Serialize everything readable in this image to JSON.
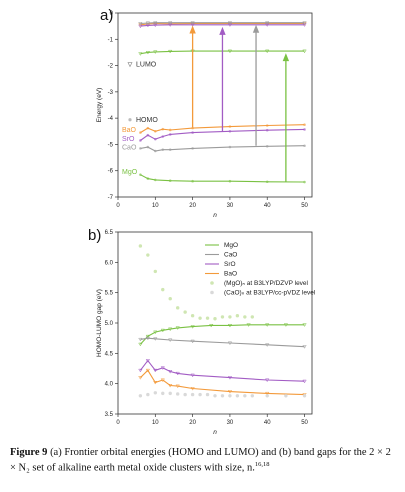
{
  "figure": {
    "panel_a": "a)",
    "panel_b": "b)",
    "caption_label": "Figure 9",
    "caption_text": " (a) Frontier orbital energies (HOMO and LUMO) and (b) band gaps for the 2 × 2 × N₂ set of alkaline earth metal oxide clusters with size, n.",
    "caption_refs": "16,18"
  },
  "colors": {
    "MgO": "#7ac143",
    "CaO": "#9b9b9b",
    "SrO": "#a25cc4",
    "BaO": "#f39a3b"
  },
  "chart_data": [
    {
      "type": "line",
      "xlabel": "n",
      "ylabel": "Energy (eV)",
      "xlim": [
        0,
        52
      ],
      "ylim": [
        -7,
        0
      ],
      "xticks": [
        0,
        10,
        20,
        30,
        40,
        50
      ],
      "yticks": [
        0,
        -1,
        -2,
        -3,
        -4,
        -5,
        -6,
        -7
      ],
      "annotations": {
        "lumo": "LUMO",
        "homo": "HOMO"
      },
      "series": [
        {
          "name": "BaO",
          "orbital": "LUMO",
          "x": [
            6,
            8,
            10,
            14,
            20,
            30,
            40,
            50
          ],
          "y": [
            -0.45,
            -0.42,
            -0.4,
            -0.41,
            -0.4,
            -0.4,
            -0.4,
            -0.4
          ]
        },
        {
          "name": "SrO",
          "orbital": "LUMO",
          "x": [
            6,
            8,
            10,
            14,
            20,
            30,
            40,
            50
          ],
          "y": [
            -0.5,
            -0.47,
            -0.46,
            -0.45,
            -0.45,
            -0.45,
            -0.45,
            -0.45
          ]
        },
        {
          "name": "CaO",
          "orbital": "LUMO",
          "x": [
            6,
            8,
            10,
            14,
            20,
            30,
            40,
            50
          ],
          "y": [
            -0.4,
            -0.38,
            -0.37,
            -0.37,
            -0.37,
            -0.37,
            -0.37,
            -0.37
          ]
        },
        {
          "name": "MgO",
          "orbital": "LUMO",
          "x": [
            6,
            8,
            10,
            14,
            20,
            30,
            40,
            50
          ],
          "y": [
            -1.55,
            -1.5,
            -1.48,
            -1.46,
            -1.45,
            -1.45,
            -1.45,
            -1.45
          ]
        },
        {
          "name": "BaO",
          "orbital": "HOMO",
          "x": [
            6,
            8,
            10,
            12,
            14,
            20,
            30,
            40,
            50
          ],
          "y": [
            -4.55,
            -4.38,
            -4.5,
            -4.42,
            -4.45,
            -4.38,
            -4.32,
            -4.28,
            -4.25
          ]
        },
        {
          "name": "SrO",
          "orbital": "HOMO",
          "x": [
            6,
            8,
            10,
            12,
            14,
            20,
            30,
            40,
            50
          ],
          "y": [
            -4.85,
            -4.65,
            -4.8,
            -4.7,
            -4.62,
            -4.55,
            -4.5,
            -4.46,
            -4.43
          ]
        },
        {
          "name": "CaO",
          "orbital": "HOMO",
          "x": [
            6,
            8,
            10,
            12,
            14,
            20,
            30,
            40,
            50
          ],
          "y": [
            -5.15,
            -5.1,
            -5.25,
            -5.2,
            -5.2,
            -5.15,
            -5.1,
            -5.07,
            -5.05
          ]
        },
        {
          "name": "MgO",
          "orbital": "HOMO",
          "x": [
            6,
            8,
            10,
            14,
            20,
            30,
            40,
            50
          ],
          "y": [
            -6.15,
            -6.3,
            -6.35,
            -6.38,
            -6.4,
            -6.4,
            -6.42,
            -6.43
          ]
        }
      ],
      "gap_arrows": [
        {
          "name": "BaO",
          "x": 20,
          "y_from": -4.35,
          "y_to": -0.4
        },
        {
          "name": "SrO",
          "x": 28,
          "y_from": -4.5,
          "y_to": -0.45
        },
        {
          "name": "CaO",
          "x": 37,
          "y_from": -5.05,
          "y_to": -0.37
        },
        {
          "name": "MgO",
          "x": 45,
          "y_from": -6.42,
          "y_to": -1.45
        }
      ]
    },
    {
      "type": "line",
      "xlabel": "n",
      "ylabel": "HOMO-LUMO gap (eV)",
      "xlim": [
        0,
        52
      ],
      "ylim": [
        3.5,
        6.5
      ],
      "xticks": [
        0,
        10,
        20,
        30,
        40,
        50
      ],
      "yticks": [
        3.5,
        4.0,
        4.5,
        5.0,
        5.5,
        6.0,
        6.5
      ],
      "legend": [
        "MgO",
        "CaO",
        "SrO",
        "BaO",
        "(MgO)ₙ at B3LYP/DZVP level",
        "(CaO)ₙ at B3LYP/cc-pVDZ level"
      ],
      "series": [
        {
          "name": "MgO",
          "x": [
            6,
            8,
            10,
            12,
            14,
            16,
            20,
            25,
            30,
            35,
            40,
            45,
            50
          ],
          "y": [
            4.65,
            4.78,
            4.85,
            4.88,
            4.9,
            4.92,
            4.94,
            4.96,
            4.96,
            4.97,
            4.97,
            4.97,
            4.97
          ]
        },
        {
          "name": "CaO",
          "x": [
            6,
            8,
            10,
            14,
            20,
            30,
            40,
            50
          ],
          "y": [
            4.73,
            4.75,
            4.74,
            4.72,
            4.7,
            4.67,
            4.64,
            4.61
          ]
        },
        {
          "name": "SrO",
          "x": [
            6,
            8,
            10,
            12,
            14,
            16,
            20,
            30,
            40,
            50
          ],
          "y": [
            4.22,
            4.38,
            4.22,
            4.26,
            4.2,
            4.17,
            4.14,
            4.1,
            4.06,
            4.04
          ]
        },
        {
          "name": "BaO",
          "x": [
            6,
            8,
            10,
            12,
            14,
            16,
            20,
            30,
            40,
            50
          ],
          "y": [
            4.1,
            4.22,
            4.02,
            4.06,
            3.97,
            3.96,
            3.92,
            3.87,
            3.84,
            3.82
          ]
        }
      ],
      "reference_points": [
        {
          "name": "(MgO)ₙ at B3LYP/DZVP level",
          "x": [
            6,
            8,
            10,
            12,
            14,
            16,
            18,
            20,
            22,
            24,
            26,
            28,
            30,
            32,
            34,
            36
          ],
          "y": [
            6.27,
            6.12,
            5.85,
            5.55,
            5.4,
            5.25,
            5.18,
            5.12,
            5.08,
            5.08,
            5.07,
            5.1,
            5.1,
            5.12,
            5.1,
            5.1
          ]
        },
        {
          "name": "(CaO)ₙ at B3LYP/cc-pVDZ level",
          "x": [
            6,
            8,
            10,
            12,
            14,
            16,
            18,
            20,
            22,
            24,
            26,
            28,
            30,
            32,
            34,
            36,
            40,
            45,
            50
          ],
          "y": [
            3.8,
            3.82,
            3.85,
            3.84,
            3.84,
            3.83,
            3.82,
            3.82,
            3.82,
            3.82,
            3.8,
            3.8,
            3.8,
            3.8,
            3.8,
            3.8,
            3.8,
            3.8,
            3.8
          ]
        }
      ]
    }
  ]
}
